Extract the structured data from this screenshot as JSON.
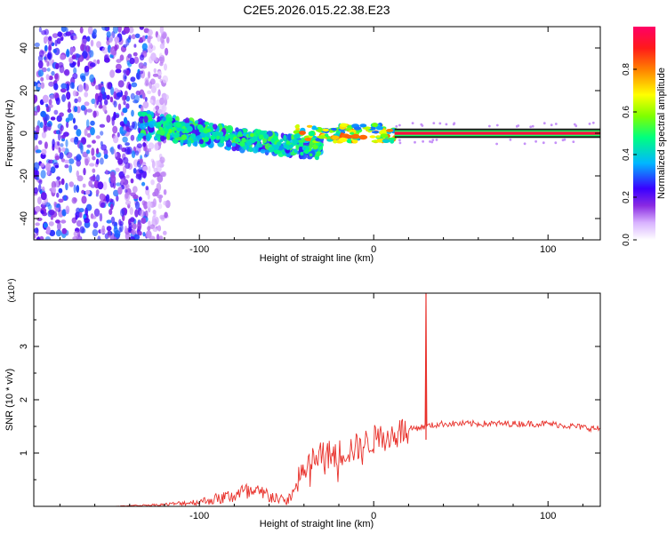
{
  "title": "C2E5.2026.015.22.38.E23",
  "chart_data": [
    {
      "type": "heatmap",
      "xlabel": "Height of straight line (km)",
      "ylabel": "Frequency (Hz)",
      "xlim": [
        -195,
        130
      ],
      "ylim": [
        -50,
        50
      ],
      "x_ticks": [
        -100,
        0,
        100
      ],
      "y_ticks": [
        -40,
        -20,
        0,
        20,
        40
      ],
      "colorbar": {
        "label": "Normalized spectral amplitude",
        "range": [
          0,
          1
        ],
        "ticks": [
          "0.0",
          "0.2",
          "0.4",
          "0.6",
          "0.8"
        ]
      },
      "regions": [
        {
          "name": "noise",
          "x": [
            -195,
            -118
          ],
          "y": [
            -50,
            50
          ],
          "amplitude": [
            0.05,
            0.3
          ]
        },
        {
          "name": "chirp",
          "x": [
            -135,
            -30
          ],
          "y_start": 4,
          "y_end": -8,
          "amplitude": [
            0.2,
            0.55
          ]
        },
        {
          "name": "transition",
          "x": [
            -45,
            12
          ],
          "y": [
            -4,
            4
          ],
          "amplitude": [
            0.3,
            0.85
          ]
        },
        {
          "name": "steady-line",
          "x": [
            12,
            130
          ],
          "y": [
            -1,
            1
          ],
          "amplitude": [
            0.9,
            1.0
          ]
        }
      ]
    },
    {
      "type": "line",
      "xlabel": "Height of straight line (km)",
      "ylabel": "SNR (10 * v/v)",
      "y_multiplier": "(x10⁴)",
      "xlim": [
        -195,
        130
      ],
      "ylim": [
        0,
        4
      ],
      "x_ticks": [
        -100,
        0,
        100
      ],
      "y_ticks": [
        1,
        2,
        3
      ],
      "series": [
        {
          "color": "#e8302a",
          "keypoints": [
            [
              -195,
              0.0
            ],
            [
              -150,
              0.0
            ],
            [
              -120,
              0.04
            ],
            [
              -100,
              0.1
            ],
            [
              -85,
              0.2
            ],
            [
              -75,
              0.3
            ],
            [
              -60,
              0.25
            ],
            [
              -50,
              0.1
            ],
            [
              -45,
              0.35
            ],
            [
              -38,
              0.8
            ],
            [
              -30,
              0.95
            ],
            [
              -20,
              1.0
            ],
            [
              -10,
              1.1
            ],
            [
              0,
              1.25
            ],
            [
              10,
              1.35
            ],
            [
              20,
              1.45
            ],
            [
              30,
              1.5
            ],
            [
              40,
              1.55
            ],
            [
              60,
              1.55
            ],
            [
              80,
              1.55
            ],
            [
              100,
              1.55
            ],
            [
              115,
              1.5
            ],
            [
              130,
              1.45
            ]
          ],
          "spike": {
            "x": 30,
            "y": 4.0
          }
        }
      ]
    }
  ]
}
